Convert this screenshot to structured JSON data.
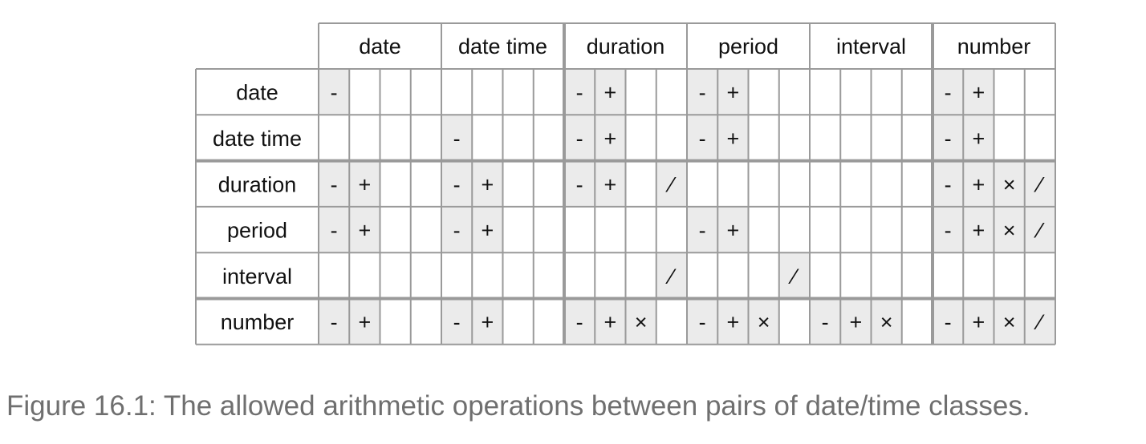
{
  "column_headers": [
    "date",
    "date time",
    "duration",
    "period",
    "interval",
    "number"
  ],
  "row_headers": [
    "date",
    "date time",
    "duration",
    "period",
    "interval",
    "number"
  ],
  "operations": [
    "-",
    "+",
    "×",
    "⁄"
  ],
  "matrix": [
    [
      [
        "-",
        "",
        "",
        ""
      ],
      [
        "",
        "",
        "",
        ""
      ],
      [
        "-",
        "+",
        "",
        ""
      ],
      [
        "-",
        "+",
        "",
        ""
      ],
      [
        "",
        "",
        "",
        ""
      ],
      [
        "-",
        "+",
        "",
        ""
      ]
    ],
    [
      [
        "",
        "",
        "",
        ""
      ],
      [
        "-",
        "",
        "",
        ""
      ],
      [
        "-",
        "+",
        "",
        ""
      ],
      [
        "-",
        "+",
        "",
        ""
      ],
      [
        "",
        "",
        "",
        ""
      ],
      [
        "-",
        "+",
        "",
        ""
      ]
    ],
    [
      [
        "-",
        "+",
        "",
        ""
      ],
      [
        "-",
        "+",
        "",
        ""
      ],
      [
        "-",
        "+",
        "",
        "⁄"
      ],
      [
        "",
        "",
        "",
        ""
      ],
      [
        "",
        "",
        "",
        ""
      ],
      [
        "-",
        "+",
        "×",
        "⁄"
      ]
    ],
    [
      [
        "-",
        "+",
        "",
        ""
      ],
      [
        "-",
        "+",
        "",
        ""
      ],
      [
        "",
        "",
        "",
        ""
      ],
      [
        "-",
        "+",
        "",
        ""
      ],
      [
        "",
        "",
        "",
        ""
      ],
      [
        "-",
        "+",
        "×",
        "⁄"
      ]
    ],
    [
      [
        "",
        "",
        "",
        ""
      ],
      [
        "",
        "",
        "",
        ""
      ],
      [
        "",
        "",
        "",
        "⁄"
      ],
      [
        "",
        "",
        "",
        "⁄"
      ],
      [
        "",
        "",
        "",
        ""
      ],
      [
        "",
        "",
        "",
        ""
      ]
    ],
    [
      [
        "-",
        "+",
        "",
        ""
      ],
      [
        "-",
        "+",
        "",
        ""
      ],
      [
        "-",
        "+",
        "×",
        ""
      ],
      [
        "-",
        "+",
        "×",
        ""
      ],
      [
        "-",
        "+",
        "×",
        ""
      ],
      [
        "-",
        "+",
        "×",
        "⁄"
      ]
    ]
  ],
  "caption": "Figure 16.1: The allowed arithmetic operations between pairs of date/time classes.",
  "colors": {
    "allowed_fill": "#ebebeb",
    "grid_line": "#9a9a9a",
    "text": "#111111",
    "caption": "#6f6f6f"
  }
}
